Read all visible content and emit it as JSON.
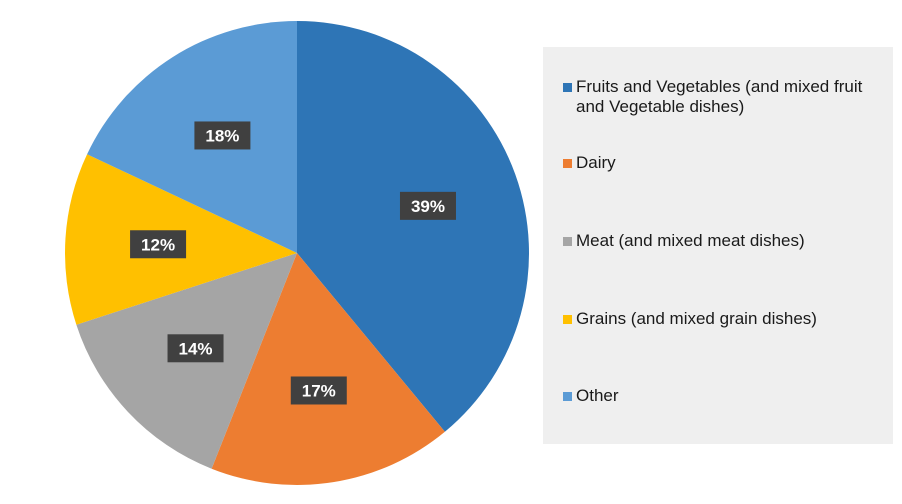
{
  "chart_data": {
    "type": "pie",
    "categories": [
      "Fruits and Vegetables (and mixed fruit and Vegetable dishes)",
      "Dairy",
      "Meat (and mixed meat dishes)",
      "Grains (and mixed grain dishes)",
      "Other"
    ],
    "values": [
      39,
      17,
      14,
      12,
      18
    ],
    "value_labels": [
      "39%",
      "17%",
      "14%",
      "12%",
      "18%"
    ],
    "colors": [
      "#2e75b6",
      "#ed7d31",
      "#a5a5a5",
      "#ffc000",
      "#5b9bd5"
    ],
    "start": "12 o'clock",
    "direction": "clockwise",
    "legend_position": "right"
  }
}
